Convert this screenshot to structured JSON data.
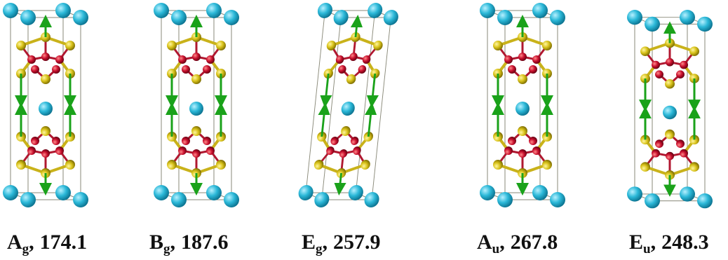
{
  "separator": ",",
  "panels": [
    {
      "symbol": "A",
      "subscript": "g",
      "frequency": 174.1
    },
    {
      "symbol": "B",
      "subscript": "g",
      "frequency": 187.6
    },
    {
      "symbol": "E",
      "subscript": "g",
      "frequency": 257.9
    },
    {
      "symbol": "A",
      "subscript": "u",
      "frequency": 267.8
    },
    {
      "symbol": "E",
      "subscript": "u",
      "frequency": 248.3
    }
  ]
}
